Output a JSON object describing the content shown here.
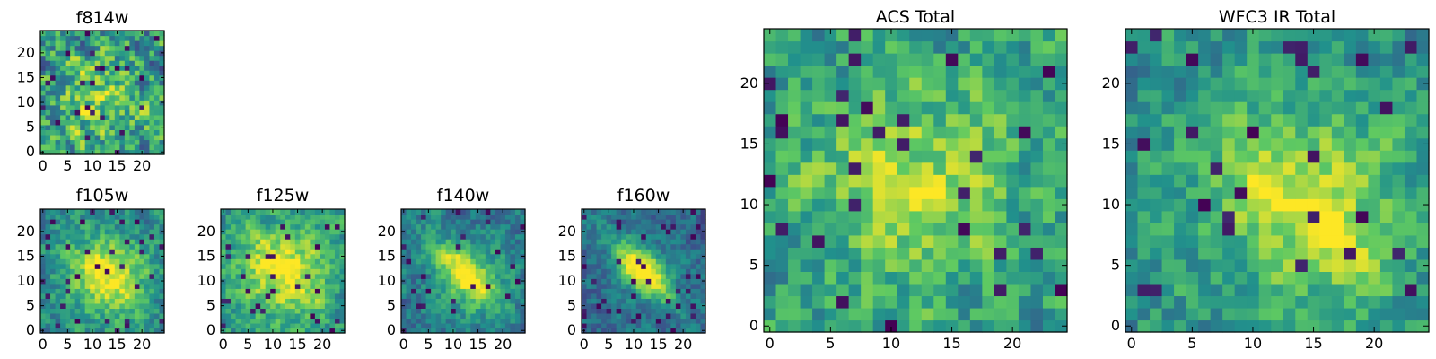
{
  "figure": {
    "background": "#ffffff",
    "colormap": {
      "name": "viridis",
      "stops": [
        "#440154",
        "#3b528b",
        "#21918c",
        "#5ec962",
        "#fde725"
      ]
    }
  },
  "chart_data": [
    {
      "type": "heatmap",
      "title": "f814w",
      "xticks": [
        0,
        5,
        10,
        15,
        20
      ],
      "yticks": [
        0,
        5,
        10,
        15,
        20
      ],
      "xlim": [
        -0.5,
        24.5
      ],
      "ylim": [
        -0.5,
        24.5
      ],
      "grid": false,
      "image_size": [
        25,
        25
      ],
      "pattern": {
        "seed": 11,
        "noise": 0.9,
        "blob_amp": 0.25,
        "blob_center": [
          11,
          11
        ],
        "blob_sigma": 6,
        "diag_amp": 0.0,
        "base": 0.55,
        "dark_frac": 0.04
      }
    },
    {
      "type": "heatmap",
      "title": "f105w",
      "xticks": [
        0,
        5,
        10,
        15,
        20
      ],
      "yticks": [
        0,
        5,
        10,
        15,
        20
      ],
      "xlim": [
        -0.5,
        24.5
      ],
      "ylim": [
        -0.5,
        24.5
      ],
      "grid": false,
      "image_size": [
        25,
        25
      ],
      "pattern": {
        "seed": 23,
        "noise": 0.5,
        "blob_amp": 0.45,
        "blob_center": [
          13,
          11
        ],
        "blob_sigma": 6,
        "diag_amp": 0.15,
        "base": 0.45,
        "dark_frac": 0.05
      }
    },
    {
      "type": "heatmap",
      "title": "f125w",
      "xticks": [
        0,
        5,
        10,
        15,
        20
      ],
      "yticks": [
        0,
        5,
        10,
        15,
        20
      ],
      "xlim": [
        -0.5,
        24.5
      ],
      "ylim": [
        -0.5,
        24.5
      ],
      "grid": false,
      "image_size": [
        25,
        25
      ],
      "pattern": {
        "seed": 37,
        "noise": 0.5,
        "blob_amp": 0.4,
        "blob_center": [
          12,
          12
        ],
        "blob_sigma": 7,
        "diag_amp": 0.15,
        "base": 0.5,
        "dark_frac": 0.04
      }
    },
    {
      "type": "heatmap",
      "title": "f140w",
      "xticks": [
        0,
        5,
        10,
        15,
        20
      ],
      "yticks": [
        0,
        5,
        10,
        15,
        20
      ],
      "xlim": [
        -0.5,
        24.5
      ],
      "ylim": [
        -0.5,
        24.5
      ],
      "grid": false,
      "image_size": [
        25,
        25
      ],
      "pattern": {
        "seed": 41,
        "noise": 0.45,
        "blob_amp": 0.35,
        "blob_center": [
          13,
          11
        ],
        "blob_sigma": 5,
        "diag_amp": 0.35,
        "base": 0.4,
        "dark_frac": 0.05
      }
    },
    {
      "type": "heatmap",
      "title": "f160w",
      "xticks": [
        0,
        5,
        10,
        15,
        20
      ],
      "yticks": [
        0,
        5,
        10,
        15,
        20
      ],
      "xlim": [
        -0.5,
        24.5
      ],
      "ylim": [
        -0.5,
        24.5
      ],
      "grid": false,
      "image_size": [
        25,
        25
      ],
      "pattern": {
        "seed": 53,
        "noise": 0.4,
        "blob_amp": 0.3,
        "blob_center": [
          12,
          12
        ],
        "blob_sigma": 4,
        "diag_amp": 0.5,
        "base": 0.35,
        "dark_frac": 0.05
      }
    },
    {
      "type": "heatmap",
      "title": "ACS Total",
      "xticks": [
        0,
        5,
        10,
        15,
        20
      ],
      "yticks": [
        0,
        5,
        10,
        15,
        20
      ],
      "xlim": [
        -0.5,
        24.5
      ],
      "ylim": [
        -0.5,
        24.5
      ],
      "grid": false,
      "image_size": [
        25,
        25
      ],
      "pattern": {
        "seed": 67,
        "noise": 0.6,
        "blob_amp": 0.3,
        "blob_center": [
          12,
          12
        ],
        "blob_sigma": 6,
        "diag_amp": 0.0,
        "base": 0.55,
        "dark_frac": 0.04
      }
    },
    {
      "type": "heatmap",
      "title": "WFC3 IR Total",
      "xticks": [
        0,
        5,
        10,
        15,
        20
      ],
      "yticks": [
        0,
        5,
        10,
        15,
        20
      ],
      "xlim": [
        -0.5,
        24.5
      ],
      "ylim": [
        -0.5,
        24.5
      ],
      "grid": false,
      "image_size": [
        25,
        25
      ],
      "pattern": {
        "seed": 79,
        "noise": 0.5,
        "blob_amp": 0.35,
        "blob_center": [
          14,
          10
        ],
        "blob_sigma": 6,
        "diag_amp": 0.15,
        "base": 0.5,
        "dark_frac": 0.04
      }
    }
  ]
}
